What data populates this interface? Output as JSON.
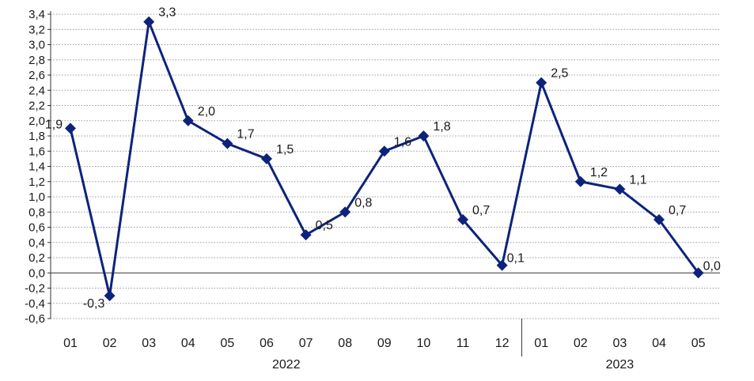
{
  "chart_data": {
    "type": "line",
    "title": "",
    "xlabel": "",
    "ylabel": "",
    "ylim": [
      -0.6,
      3.4
    ],
    "yticks": [
      "3,4",
      "3,2",
      "3,0",
      "2,8",
      "2,6",
      "2,4",
      "2,2",
      "2,0",
      "1,8",
      "1,6",
      "1,4",
      "1,2",
      "1,0",
      "0,8",
      "0,6",
      "0,4",
      "0,2",
      "0,0",
      "-0,2",
      "-0,4",
      "-0,6"
    ],
    "categories": [
      "01",
      "02",
      "03",
      "04",
      "05",
      "06",
      "07",
      "08",
      "09",
      "10",
      "11",
      "12",
      "01",
      "02",
      "03",
      "04",
      "05"
    ],
    "year_groups": [
      {
        "label": "2022",
        "start": 0,
        "end": 11
      },
      {
        "label": "2023",
        "start": 12,
        "end": 16
      }
    ],
    "series": [
      {
        "values": [
          1.9,
          -0.3,
          3.3,
          2.0,
          1.7,
          1.5,
          0.5,
          0.8,
          1.6,
          1.8,
          0.7,
          0.1,
          2.5,
          1.2,
          1.1,
          0.7,
          0.0
        ],
        "labels": [
          "1,9",
          "-0,3",
          "3,3",
          "2,0",
          "1,7",
          "1,5",
          "0,5",
          "0,8",
          "1,6",
          "1,8",
          "0,7",
          "0,1",
          "2,5",
          "1,2",
          "1,1",
          "0,7",
          "0,0"
        ],
        "color": "#0d237b"
      }
    ],
    "grid": true,
    "grid_style": "dotted",
    "marker": "diamond",
    "colors": {
      "line": "#0d237b",
      "grid": "#9a9a9a",
      "axis": "#333333"
    }
  }
}
